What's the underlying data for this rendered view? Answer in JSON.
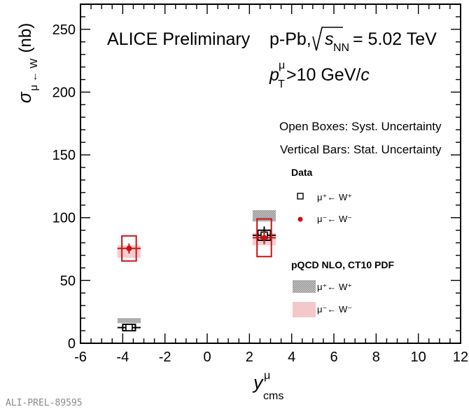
{
  "header": {
    "experiment": "ALICE Preliminary",
    "system": "p-Pb,",
    "energy": "= 5.02 TeV",
    "pt_cut": ">10 GeV/",
    "pt_unit": "c"
  },
  "notes": {
    "syst": "Open Boxes: Syst. Uncertainty",
    "stat": "Vertical Bars: Stat. Uncertainty"
  },
  "legend": {
    "data_title": "Data",
    "theory_title": "pQCD NLO, CT10 PDF",
    "mu_plus": "μ⁺← W⁺",
    "mu_minus": "μ⁻← W⁻"
  },
  "footer": "ALI-PREL-89595",
  "chart_data": {
    "type": "scatter",
    "xlabel": "y",
    "xlabel_sup": "μ",
    "xlabel_sub": "cms",
    "ylabel": "σ",
    "ylabel_sub": "μ ← W",
    "ylabel_unit": "(nb)",
    "xlim": [
      -6,
      12
    ],
    "ylim": [
      0,
      270
    ],
    "xticks": [
      -6,
      -4,
      -2,
      0,
      2,
      4,
      6,
      8,
      10,
      12
    ],
    "yticks": [
      0,
      50,
      100,
      150,
      200,
      250
    ],
    "colors": {
      "mu_minus": "#cc1111",
      "mu_plus": "#000000",
      "theory_plus": "#a9a9a9",
      "theory_minus": "#f4c7cb"
    },
    "series": [
      {
        "name": "μ⁺← W⁺",
        "marker": "open-square",
        "points": [
          {
            "x": -3.7,
            "xerr": 0.55,
            "y": 12.5,
            "stat": 1.5,
            "syst": 2.5
          },
          {
            "x": 2.7,
            "xerr": 0.55,
            "y": 86,
            "stat": 7,
            "syst": 4
          }
        ]
      },
      {
        "name": "μ⁻← W⁻",
        "marker": "filled-circle",
        "points": [
          {
            "x": -3.7,
            "xerr": 0.55,
            "y": 75.5,
            "stat": 4,
            "syst": 10
          },
          {
            "x": 2.7,
            "xerr": 0.55,
            "y": 84,
            "stat": 5,
            "syst": 15
          }
        ]
      }
    ],
    "theory": [
      {
        "name": "μ⁺← W⁺",
        "bands": [
          {
            "x1": -4.25,
            "x2": -3.15,
            "y1": 16,
            "y2": 20
          },
          {
            "x1": 2.15,
            "x2": 3.25,
            "y1": 97,
            "y2": 106
          }
        ]
      },
      {
        "name": "μ⁻← W⁻",
        "bands": [
          {
            "x1": -4.25,
            "x2": -3.15,
            "y1": 68,
            "y2": 78
          },
          {
            "x1": 2.15,
            "x2": 3.25,
            "y1": 78,
            "y2": 88
          }
        ]
      }
    ]
  }
}
